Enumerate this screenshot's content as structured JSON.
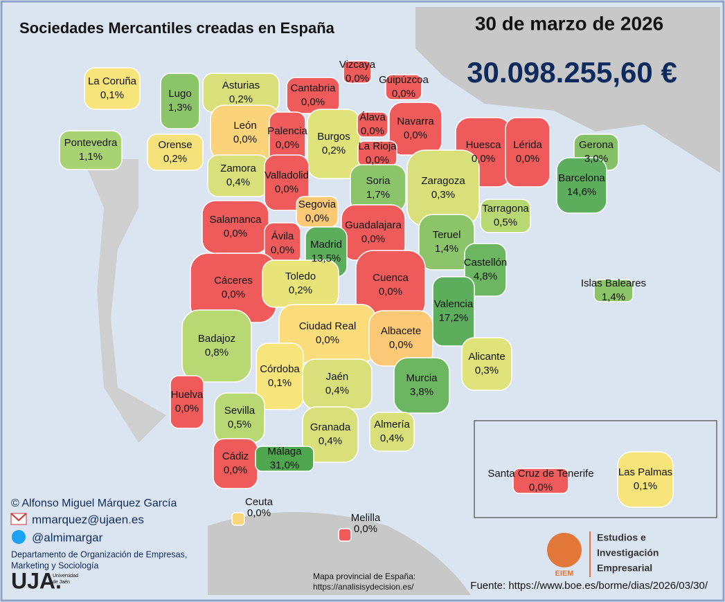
{
  "title": "Sociedades Mercantiles creadas en España",
  "date": "30 de marzo de 2026",
  "total": "30.098.255,60 €",
  "provinces": [
    {
      "name": "La Coruña",
      "value": "0,1%",
      "color": "#f7e47a"
    },
    {
      "name": "Lugo",
      "value": "1,3%",
      "color": "#8cc46a"
    },
    {
      "name": "Asturias",
      "value": "0,2%",
      "color": "#d9e07a"
    },
    {
      "name": "Cantabria",
      "value": "0,0%",
      "color": "#ef5b5b"
    },
    {
      "name": "Vizcaya",
      "value": "0,0%",
      "color": "#ef5b5b"
    },
    {
      "name": "Guipúzcoa",
      "value": "0,0%",
      "color": "#ef5b5b"
    },
    {
      "name": "Pontevedra",
      "value": "1,1%",
      "color": "#a9d373"
    },
    {
      "name": "Orense",
      "value": "0,2%",
      "color": "#f5e27a"
    },
    {
      "name": "León",
      "value": "0,0%",
      "color": "#fbd37a"
    },
    {
      "name": "Palencia",
      "value": "0,0%",
      "color": "#ef5b5b"
    },
    {
      "name": "Burgos",
      "value": "0,2%",
      "color": "#e0e27a"
    },
    {
      "name": "Álava",
      "value": "0,0%",
      "color": "#ef5b5b"
    },
    {
      "name": "Navarra",
      "value": "0,0%",
      "color": "#ef5b5b"
    },
    {
      "name": "La Rioja",
      "value": "0,0%",
      "color": "#ef5b5b"
    },
    {
      "name": "Huesca",
      "value": "0,0%",
      "color": "#ef5b5b"
    },
    {
      "name": "Lérida",
      "value": "0,0%",
      "color": "#ef5b5b"
    },
    {
      "name": "Gerona",
      "value": "3,0%",
      "color": "#86c066"
    },
    {
      "name": "Barcelona",
      "value": "14,6%",
      "color": "#5cae5c"
    },
    {
      "name": "Zamora",
      "value": "0,4%",
      "color": "#d9e07a"
    },
    {
      "name": "Valladolid",
      "value": "0,0%",
      "color": "#ef5b5b"
    },
    {
      "name": "Soria",
      "value": "1,7%",
      "color": "#8cc46a"
    },
    {
      "name": "Zaragoza",
      "value": "0,3%",
      "color": "#d9e07a"
    },
    {
      "name": "Tarragona",
      "value": "0,5%",
      "color": "#b7d873"
    },
    {
      "name": "Segovia",
      "value": "0,0%",
      "color": "#fbc875"
    },
    {
      "name": "Salamanca",
      "value": "0,0%",
      "color": "#ef5b5b"
    },
    {
      "name": "Guadalajara",
      "value": "0,0%",
      "color": "#ef5b5b"
    },
    {
      "name": "Ávila",
      "value": "0,0%",
      "color": "#ef5b5b"
    },
    {
      "name": "Madrid",
      "value": "13,5%",
      "color": "#5cae5c"
    },
    {
      "name": "Teruel",
      "value": "1,4%",
      "color": "#8cc46a"
    },
    {
      "name": "Castellón",
      "value": "4,8%",
      "color": "#6cb661"
    },
    {
      "name": "Cáceres",
      "value": "0,0%",
      "color": "#ef5b5b"
    },
    {
      "name": "Toledo",
      "value": "0,2%",
      "color": "#e8e47a"
    },
    {
      "name": "Cuenca",
      "value": "0,0%",
      "color": "#ef5b5b"
    },
    {
      "name": "Islas Baleares",
      "value": "1,4%",
      "color": "#8cc46a"
    },
    {
      "name": "Valencia",
      "value": "17,2%",
      "color": "#5cae5c"
    },
    {
      "name": "Ciudad Real",
      "value": "0,0%",
      "color": "#fbdc7a"
    },
    {
      "name": "Albacete",
      "value": "0,0%",
      "color": "#fbc875"
    },
    {
      "name": "Badajoz",
      "value": "0,8%",
      "color": "#b7d873"
    },
    {
      "name": "Alicante",
      "value": "0,3%",
      "color": "#e0e27a"
    },
    {
      "name": "Córdoba",
      "value": "0,1%",
      "color": "#f7e47a"
    },
    {
      "name": "Jaén",
      "value": "0,4%",
      "color": "#d9e07a"
    },
    {
      "name": "Murcia",
      "value": "3,8%",
      "color": "#6cb661"
    },
    {
      "name": "Huelva",
      "value": "0,0%",
      "color": "#ef5b5b"
    },
    {
      "name": "Sevilla",
      "value": "0,5%",
      "color": "#b7d873"
    },
    {
      "name": "Granada",
      "value": "0,4%",
      "color": "#d9e07a"
    },
    {
      "name": "Almería",
      "value": "0,4%",
      "color": "#d9e07a"
    },
    {
      "name": "Cádiz",
      "value": "0,0%",
      "color": "#ef5b5b"
    },
    {
      "name": "Málaga",
      "value": "31,0%",
      "color": "#4ea64f"
    },
    {
      "name": "Santa Cruz de Tenerife",
      "value": "0,0%",
      "color": "#ef5b5b"
    },
    {
      "name": "Las Palmas",
      "value": "0,1%",
      "color": "#f7e47a"
    },
    {
      "name": "Ceuta",
      "value": "0,0%",
      "color": "#f7d77a"
    },
    {
      "name": "Melilla",
      "value": "0,0%",
      "color": "#ef5b5b"
    }
  ],
  "author": {
    "name": "© Alfonso Miguel Márquez García",
    "email": "mmarquez@ujaen.es",
    "twitter": "@almimargar",
    "department": [
      "Departamento de Organización de Empresas,",
      "Marketing y Sociología"
    ]
  },
  "university": {
    "acronym": "UJA.",
    "name": [
      "Universidad",
      "de Jaén"
    ]
  },
  "map_credit": [
    "Mapa provincial de España:",
    "https://analisisydecision.es/"
  ],
  "logo": {
    "acronym": "EIEM",
    "lines": [
      "Estudios e",
      "Investigación",
      "Empresarial"
    ]
  },
  "source": "Fuente: https://www.boe.es/borme/dias/2026/03/30/"
}
